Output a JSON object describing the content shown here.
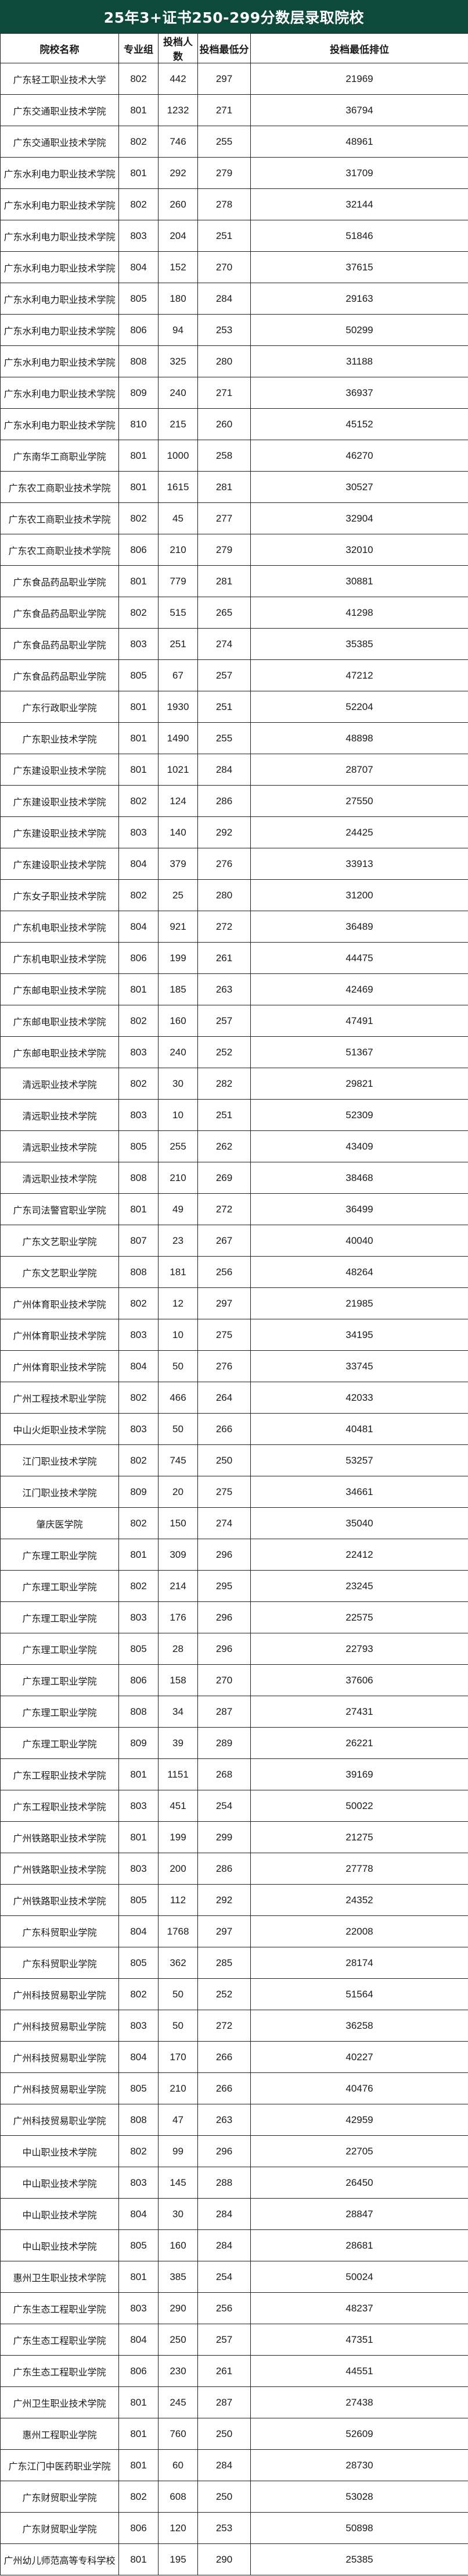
{
  "title": "25年3+证书250-299分数层录取院校",
  "columns": [
    "院校名称",
    "专业组",
    "投档人数",
    "投档最低分",
    "投档最低排位"
  ],
  "rows": [
    [
      "广东轻工职业技术大学",
      "802",
      "442",
      "297",
      "21969"
    ],
    [
      "广东交通职业技术学院",
      "801",
      "1232",
      "271",
      "36794"
    ],
    [
      "广东交通职业技术学院",
      "802",
      "746",
      "255",
      "48961"
    ],
    [
      "广东水利电力职业技术学院",
      "801",
      "292",
      "279",
      "31709"
    ],
    [
      "广东水利电力职业技术学院",
      "802",
      "260",
      "278",
      "32144"
    ],
    [
      "广东水利电力职业技术学院",
      "803",
      "204",
      "251",
      "51846"
    ],
    [
      "广东水利电力职业技术学院",
      "804",
      "152",
      "270",
      "37615"
    ],
    [
      "广东水利电力职业技术学院",
      "805",
      "180",
      "284",
      "29163"
    ],
    [
      "广东水利电力职业技术学院",
      "806",
      "94",
      "253",
      "50299"
    ],
    [
      "广东水利电力职业技术学院",
      "808",
      "325",
      "280",
      "31188"
    ],
    [
      "广东水利电力职业技术学院",
      "809",
      "240",
      "271",
      "36937"
    ],
    [
      "广东水利电力职业技术学院",
      "810",
      "215",
      "260",
      "45152"
    ],
    [
      "广东南华工商职业学院",
      "801",
      "1000",
      "258",
      "46270"
    ],
    [
      "广东农工商职业技术学院",
      "801",
      "1615",
      "281",
      "30527"
    ],
    [
      "广东农工商职业技术学院",
      "802",
      "45",
      "277",
      "32904"
    ],
    [
      "广东农工商职业技术学院",
      "806",
      "210",
      "279",
      "32010"
    ],
    [
      "广东食品药品职业学院",
      "801",
      "779",
      "281",
      "30881"
    ],
    [
      "广东食品药品职业学院",
      "802",
      "515",
      "265",
      "41298"
    ],
    [
      "广东食品药品职业学院",
      "803",
      "251",
      "274",
      "35385"
    ],
    [
      "广东食品药品职业学院",
      "805",
      "67",
      "257",
      "47212"
    ],
    [
      "广东行政职业学院",
      "801",
      "1930",
      "251",
      "52204"
    ],
    [
      "广东职业技术学院",
      "801",
      "1490",
      "255",
      "48898"
    ],
    [
      "广东建设职业技术学院",
      "801",
      "1021",
      "284",
      "28707"
    ],
    [
      "广东建设职业技术学院",
      "802",
      "124",
      "286",
      "27550"
    ],
    [
      "广东建设职业技术学院",
      "803",
      "140",
      "292",
      "24425"
    ],
    [
      "广东建设职业技术学院",
      "804",
      "379",
      "276",
      "33913"
    ],
    [
      "广东女子职业技术学院",
      "802",
      "25",
      "280",
      "31200"
    ],
    [
      "广东机电职业技术学院",
      "804",
      "921",
      "272",
      "36489"
    ],
    [
      "广东机电职业技术学院",
      "806",
      "199",
      "261",
      "44475"
    ],
    [
      "广东邮电职业技术学院",
      "801",
      "185",
      "263",
      "42469"
    ],
    [
      "广东邮电职业技术学院",
      "802",
      "160",
      "257",
      "47491"
    ],
    [
      "广东邮电职业技术学院",
      "803",
      "240",
      "252",
      "51367"
    ],
    [
      "清远职业技术学院",
      "802",
      "30",
      "282",
      "29821"
    ],
    [
      "清远职业技术学院",
      "803",
      "10",
      "251",
      "52309"
    ],
    [
      "清远职业技术学院",
      "805",
      "255",
      "262",
      "43409"
    ],
    [
      "清远职业技术学院",
      "808",
      "210",
      "269",
      "38468"
    ],
    [
      "广东司法警官职业学院",
      "801",
      "49",
      "272",
      "36499"
    ],
    [
      "广东文艺职业学院",
      "807",
      "23",
      "267",
      "40040"
    ],
    [
      "广东文艺职业学院",
      "808",
      "181",
      "256",
      "48264"
    ],
    [
      "广州体育职业技术学院",
      "802",
      "12",
      "297",
      "21985"
    ],
    [
      "广州体育职业技术学院",
      "803",
      "10",
      "275",
      "34195"
    ],
    [
      "广州体育职业技术学院",
      "804",
      "50",
      "276",
      "33745"
    ],
    [
      "广州工程技术职业学院",
      "802",
      "466",
      "264",
      "42033"
    ],
    [
      "中山火炬职业技术学院",
      "803",
      "50",
      "266",
      "40481"
    ],
    [
      "江门职业技术学院",
      "802",
      "745",
      "250",
      "53257"
    ],
    [
      "江门职业技术学院",
      "809",
      "20",
      "275",
      "34661"
    ],
    [
      "肇庆医学院",
      "802",
      "150",
      "274",
      "35040"
    ],
    [
      "广东理工职业学院",
      "801",
      "309",
      "296",
      "22412"
    ],
    [
      "广东理工职业学院",
      "802",
      "214",
      "295",
      "23245"
    ],
    [
      "广东理工职业学院",
      "803",
      "176",
      "296",
      "22575"
    ],
    [
      "广东理工职业学院",
      "805",
      "28",
      "296",
      "22793"
    ],
    [
      "广东理工职业学院",
      "806",
      "158",
      "270",
      "37606"
    ],
    [
      "广东理工职业学院",
      "808",
      "34",
      "287",
      "27431"
    ],
    [
      "广东理工职业学院",
      "809",
      "39",
      "289",
      "26221"
    ],
    [
      "广东工程职业技术学院",
      "801",
      "1151",
      "268",
      "39169"
    ],
    [
      "广东工程职业技术学院",
      "803",
      "451",
      "254",
      "50022"
    ],
    [
      "广州铁路职业技术学院",
      "801",
      "199",
      "299",
      "21275"
    ],
    [
      "广州铁路职业技术学院",
      "803",
      "200",
      "286",
      "27778"
    ],
    [
      "广州铁路职业技术学院",
      "805",
      "112",
      "292",
      "24352"
    ],
    [
      "广东科贸职业学院",
      "804",
      "1768",
      "297",
      "22008"
    ],
    [
      "广东科贸职业学院",
      "805",
      "362",
      "285",
      "28174"
    ],
    [
      "广州科技贸易职业学院",
      "802",
      "50",
      "252",
      "51564"
    ],
    [
      "广州科技贸易职业学院",
      "803",
      "50",
      "272",
      "36258"
    ],
    [
      "广州科技贸易职业学院",
      "804",
      "170",
      "266",
      "40227"
    ],
    [
      "广州科技贸易职业学院",
      "805",
      "210",
      "266",
      "40476"
    ],
    [
      "广州科技贸易职业学院",
      "808",
      "47",
      "263",
      "42959"
    ],
    [
      "中山职业技术学院",
      "802",
      "99",
      "296",
      "22705"
    ],
    [
      "中山职业技术学院",
      "803",
      "145",
      "288",
      "26450"
    ],
    [
      "中山职业技术学院",
      "804",
      "30",
      "284",
      "28847"
    ],
    [
      "中山职业技术学院",
      "805",
      "160",
      "284",
      "28681"
    ],
    [
      "惠州卫生职业技术学院",
      "801",
      "385",
      "254",
      "50024"
    ],
    [
      "广东生态工程职业学院",
      "803",
      "290",
      "256",
      "48237"
    ],
    [
      "广东生态工程职业学院",
      "804",
      "250",
      "257",
      "47351"
    ],
    [
      "广东生态工程职业学院",
      "806",
      "230",
      "261",
      "44551"
    ],
    [
      "广州卫生职业技术学院",
      "801",
      "245",
      "287",
      "27438"
    ],
    [
      "惠州工程职业学院",
      "801",
      "760",
      "250",
      "52609"
    ],
    [
      "广东江门中医药职业学院",
      "801",
      "60",
      "284",
      "28730"
    ],
    [
      "广东财贸职业学院",
      "802",
      "608",
      "250",
      "53028"
    ],
    [
      "广东财贸职业学院",
      "806",
      "120",
      "253",
      "50898"
    ],
    [
      "广州幼儿师范高等专科学校",
      "801",
      "195",
      "290",
      "25385"
    ]
  ],
  "colors": {
    "title_bg": "#0e4a3b",
    "title_text": "#ffffff",
    "border": "#222222"
  }
}
